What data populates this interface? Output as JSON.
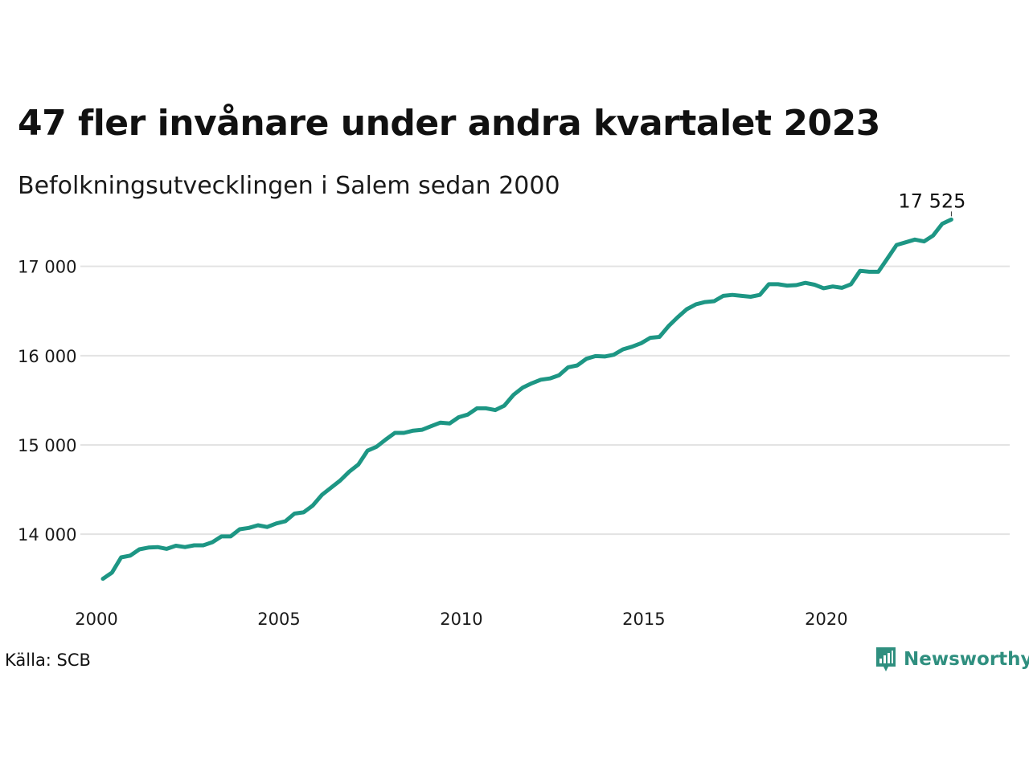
{
  "header": {
    "title": "47 fler invånare under andra kvartalet 2023",
    "subtitle": "Befolkningsutvecklingen i Salem sedan 2000"
  },
  "footer": {
    "source": "Källa: SCB",
    "brand": "Newsworthy"
  },
  "colors": {
    "line": "#1d9684",
    "grid": "#e3e3e3",
    "brand": "#2f8f7f"
  },
  "icons": {
    "brand_logo": "newsworthy-logo-icon"
  },
  "chart_data": {
    "type": "line",
    "title": "47 fler invånare under andra kvartalet 2023",
    "subtitle": "Befolkningsutvecklingen i Salem sedan 2000",
    "xlabel": "",
    "ylabel": "",
    "x_ticks": [
      "2000",
      "2005",
      "2010",
      "2015",
      "2020"
    ],
    "y_ticks": [
      "14 000",
      "15 000",
      "16 000",
      "17 000"
    ],
    "y_tick_values": [
      14000,
      15000,
      16000,
      17000
    ],
    "ylim": [
      13470,
      17600
    ],
    "xlim": [
      2000.0,
      2024.1
    ],
    "grid": true,
    "end_label": "17 525",
    "series": [
      {
        "name": "",
        "x": [
          2000.0,
          2000.25,
          2000.5,
          2000.75,
          2001.0,
          2001.25,
          2001.5,
          2001.75,
          2002.0,
          2002.25,
          2002.5,
          2002.75,
          2003.0,
          2003.25,
          2003.5,
          2003.75,
          2004.0,
          2004.25,
          2004.5,
          2004.75,
          2005.0,
          2005.25,
          2005.5,
          2005.75,
          2006.0,
          2006.25,
          2006.5,
          2006.75,
          2007.0,
          2007.25,
          2007.5,
          2007.75,
          2008.0,
          2008.25,
          2008.5,
          2008.75,
          2009.0,
          2009.25,
          2009.5,
          2009.75,
          2010.0,
          2010.25,
          2010.5,
          2010.75,
          2011.0,
          2011.25,
          2011.5,
          2011.75,
          2012.0,
          2012.25,
          2012.5,
          2012.75,
          2013.0,
          2013.25,
          2013.5,
          2013.75,
          2014.0,
          2014.25,
          2014.5,
          2014.75,
          2015.0,
          2015.25,
          2015.5,
          2015.75,
          2016.0,
          2016.25,
          2016.5,
          2016.75,
          2017.0,
          2017.25,
          2017.5,
          2017.75,
          2018.0,
          2018.25,
          2018.5,
          2018.75,
          2019.0,
          2019.25,
          2019.5,
          2019.75,
          2020.0,
          2020.25,
          2020.5,
          2020.75,
          2021.0,
          2021.25,
          2021.5,
          2021.75,
          2022.0,
          2022.25,
          2022.5,
          2022.75,
          2023.0,
          2023.25
        ],
        "values": [
          13500,
          13570,
          13740,
          13760,
          13830,
          13850,
          13855,
          13835,
          13870,
          13855,
          13875,
          13875,
          13910,
          13975,
          13975,
          14055,
          14070,
          14100,
          14080,
          14120,
          14145,
          14230,
          14245,
          14320,
          14440,
          14520,
          14600,
          14700,
          14780,
          14935,
          14980,
          15060,
          15135,
          15135,
          15160,
          15170,
          15210,
          15250,
          15240,
          15310,
          15340,
          15410,
          15410,
          15390,
          15440,
          15560,
          15640,
          15690,
          15730,
          15745,
          15780,
          15870,
          15890,
          15965,
          15995,
          15990,
          16010,
          16070,
          16100,
          16140,
          16200,
          16210,
          16330,
          16430,
          16520,
          16575,
          16600,
          16610,
          16670,
          16680,
          16670,
          16660,
          16680,
          16800,
          16800,
          16785,
          16790,
          16815,
          16795,
          16755,
          16775,
          16760,
          16800,
          16950,
          16940,
          16940,
          17090,
          17240,
          17270,
          17300,
          17280,
          17345,
          17478,
          17525
        ]
      }
    ]
  }
}
